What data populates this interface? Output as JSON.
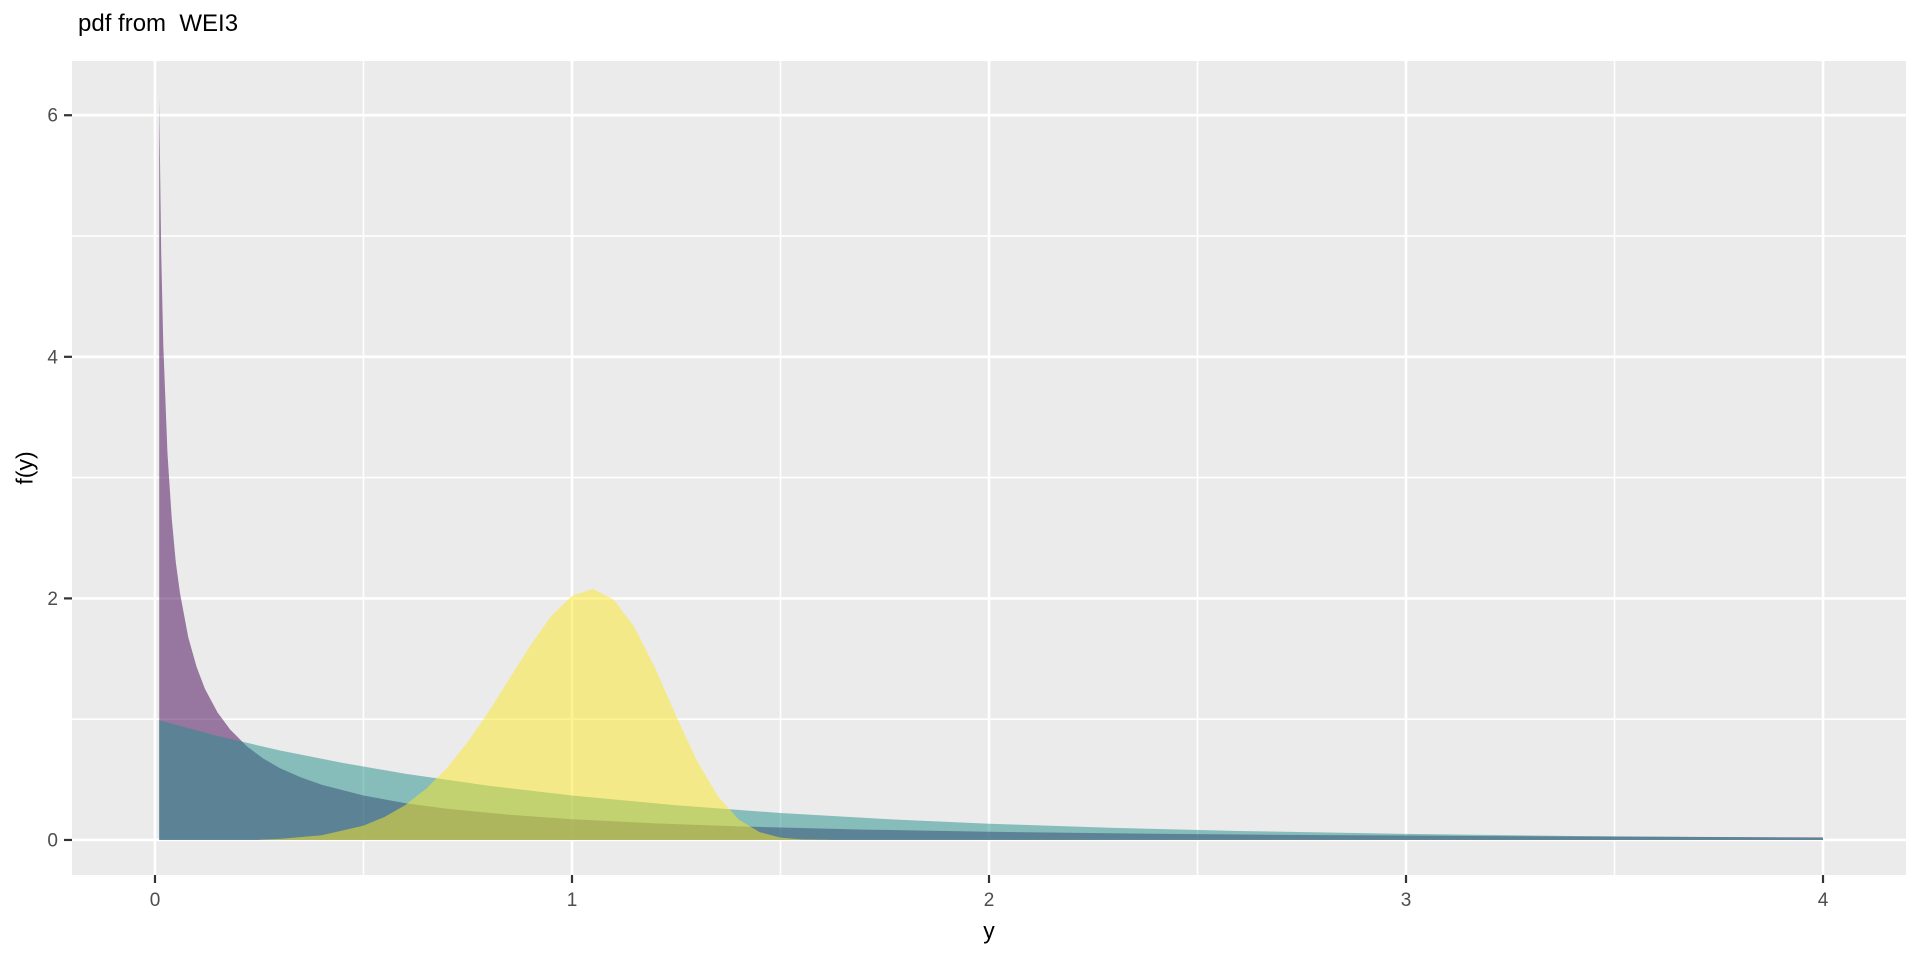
{
  "page": {
    "background": "#FFFFFF"
  },
  "chart_data": {
    "type": "area",
    "title": "pdf from  WEI3",
    "xlabel": "y",
    "ylabel": "f(y)",
    "legend_position": "none",
    "grid": "on",
    "panel_bg": "#EBEBEB",
    "grid_color": "#FFFFFF",
    "tick_mark_color": "#333333",
    "tick_label_color": "#4D4D4D",
    "title_color": "#000000",
    "xlim": [
      -0.199,
      4.199
    ],
    "ylim": [
      -0.29,
      6.449
    ],
    "x_ticks": [
      0,
      1,
      2,
      3,
      4
    ],
    "y_ticks": [
      0,
      2,
      4,
      6
    ],
    "x_minor_ticks": [
      0.5,
      1.5,
      2.5,
      3.5
    ],
    "y_minor_ticks": [
      1,
      3,
      5
    ],
    "series": [
      {
        "name": "purple-density-spike",
        "fill": "#440154",
        "fill_opacity": 0.5,
        "peak": {
          "x": 0.01,
          "y": 6.14
        },
        "points": [
          [
            0.01,
            6.139
          ],
          [
            0.015,
            4.856
          ],
          [
            0.02,
            4.094
          ],
          [
            0.03,
            3.195
          ],
          [
            0.04,
            2.665
          ],
          [
            0.05,
            2.3
          ],
          [
            0.06,
            2.042
          ],
          [
            0.08,
            1.676
          ],
          [
            0.1,
            1.43
          ],
          [
            0.12,
            1.25
          ],
          [
            0.15,
            1.056
          ],
          [
            0.18,
            0.915
          ],
          [
            0.22,
            0.777
          ],
          [
            0.26,
            0.674
          ],
          [
            0.3,
            0.594
          ],
          [
            0.35,
            0.518
          ],
          [
            0.4,
            0.457
          ],
          [
            0.5,
            0.368
          ],
          [
            0.6,
            0.305
          ],
          [
            0.7,
            0.259
          ],
          [
            0.85,
            0.208
          ],
          [
            1.0,
            0.172
          ],
          [
            1.2,
            0.137
          ],
          [
            1.4,
            0.112
          ],
          [
            1.7,
            0.086
          ],
          [
            2.0,
            0.068
          ],
          [
            2.4,
            0.051
          ],
          [
            2.8,
            0.04
          ],
          [
            3.2,
            0.032
          ],
          [
            3.6,
            0.026
          ],
          [
            4.0,
            0.021
          ]
        ]
      },
      {
        "name": "teal-density-exponential",
        "fill": "#21908C",
        "fill_opacity": 0.5,
        "peak": {
          "x": 0.01,
          "y": 0.99
        },
        "points": [
          [
            0.01,
            0.99
          ],
          [
            0.15,
            0.861
          ],
          [
            0.3,
            0.741
          ],
          [
            0.45,
            0.638
          ],
          [
            0.6,
            0.549
          ],
          [
            0.8,
            0.449
          ],
          [
            1.0,
            0.368
          ],
          [
            1.25,
            0.287
          ],
          [
            1.5,
            0.223
          ],
          [
            1.75,
            0.174
          ],
          [
            2.0,
            0.135
          ],
          [
            2.3,
            0.1
          ],
          [
            2.6,
            0.074
          ],
          [
            3.0,
            0.05
          ],
          [
            3.4,
            0.033
          ],
          [
            3.7,
            0.025
          ],
          [
            4.0,
            0.018
          ]
        ]
      },
      {
        "name": "yellow-density-bell",
        "fill": "#FDE725",
        "fill_opacity": 0.5,
        "peak": {
          "x": 1.05,
          "y": 2.08
        },
        "points": [
          [
            0.25,
            0.002
          ],
          [
            0.3,
            0.009
          ],
          [
            0.4,
            0.039
          ],
          [
            0.5,
            0.119
          ],
          [
            0.55,
            0.189
          ],
          [
            0.6,
            0.289
          ],
          [
            0.65,
            0.423
          ],
          [
            0.7,
            0.596
          ],
          [
            0.75,
            0.81
          ],
          [
            0.8,
            1.061
          ],
          [
            0.85,
            1.334
          ],
          [
            0.9,
            1.609
          ],
          [
            0.95,
            1.853
          ],
          [
            1.0,
            2.022
          ],
          [
            1.05,
            2.078
          ],
          [
            1.1,
            1.991
          ],
          [
            1.15,
            1.76
          ],
          [
            1.2,
            1.419
          ],
          [
            1.25,
            1.026
          ],
          [
            1.3,
            0.653
          ],
          [
            1.35,
            0.362
          ],
          [
            1.4,
            0.169
          ],
          [
            1.45,
            0.065
          ],
          [
            1.5,
            0.02
          ],
          [
            1.55,
            0.005
          ],
          [
            1.62,
            0.001
          ]
        ]
      }
    ]
  }
}
